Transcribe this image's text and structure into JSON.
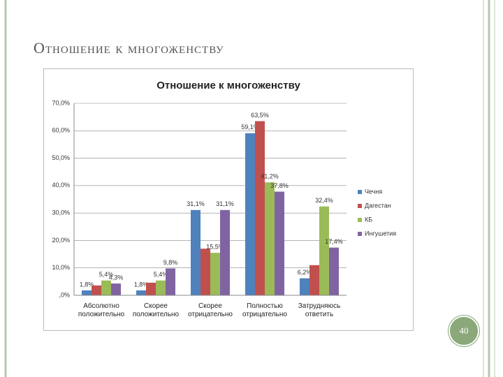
{
  "slide_title": "Отношение к многоженству",
  "slide_number": "40",
  "chart_data": {
    "type": "bar",
    "title": "Отношение к многоженству",
    "categories": [
      "Абсолютно положительно",
      "Скорее положительно",
      "Скорее отрицательно",
      "Полностью отрицательно",
      "Затрудняюсь ответить"
    ],
    "series": [
      {
        "name": "Чечня",
        "color": "#4f81bd",
        "values": [
          1.8,
          1.8,
          31.1,
          59.1,
          6.2
        ],
        "value_labels": [
          "1,8%",
          "1,8%",
          "31,1%",
          "59,1%",
          "6,2%"
        ]
      },
      {
        "name": "Дагестан",
        "color": "#c0504d",
        "values": [
          3.6,
          4.6,
          17,
          63.5,
          11
        ],
        "value_labels": [
          null,
          null,
          null,
          "63,5%",
          null
        ]
      },
      {
        "name": "КБ",
        "color": "#9bbb59",
        "values": [
          5.4,
          5.4,
          15.5,
          41.2,
          32.4
        ],
        "value_labels": [
          "5,4%",
          "5,4%",
          "15,5%",
          "41,2%",
          "32,4%"
        ]
      },
      {
        "name": "Ингушетия",
        "color": "#8064a2",
        "values": [
          4.3,
          9.8,
          31.1,
          37.8,
          17.4
        ],
        "value_labels": [
          "4,3%",
          "9,8%",
          "31,1%",
          "37,8%",
          "17,4%"
        ]
      }
    ],
    "ylim": [
      0,
      70
    ],
    "yticks": [
      {
        "value": 0,
        "label": ",0%"
      },
      {
        "value": 10,
        "label": "10,0%"
      },
      {
        "value": 20,
        "label": "20,0%"
      },
      {
        "value": 30,
        "label": "30,0%"
      },
      {
        "value": 40,
        "label": "40,0%"
      },
      {
        "value": 50,
        "label": "50,0%"
      },
      {
        "value": 60,
        "label": "60,0%"
      },
      {
        "value": 70,
        "label": "70,0%"
      }
    ],
    "grid": true,
    "legend": "right"
  }
}
